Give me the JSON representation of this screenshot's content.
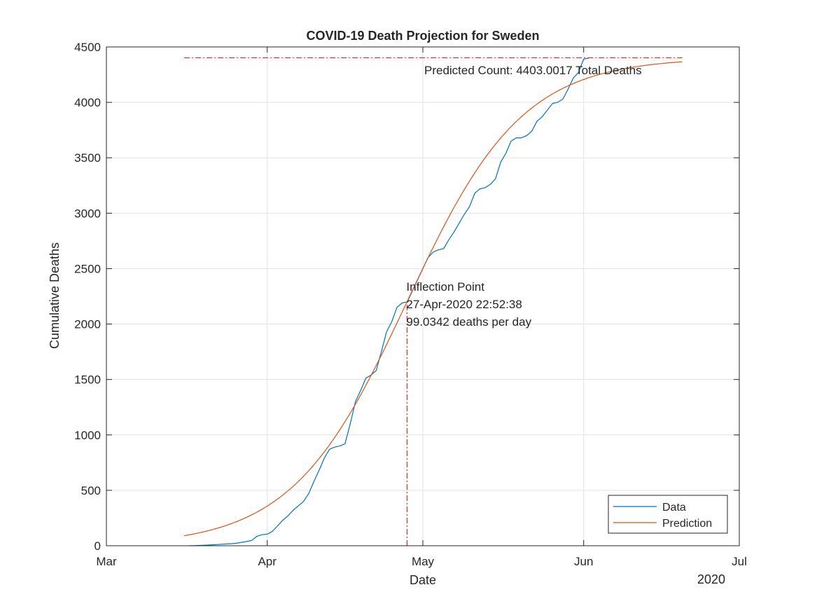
{
  "chart_data": {
    "type": "line",
    "title": "COVID-19 Death Projection for Sweden",
    "xlabel": "Date",
    "ylabel": "Cumulative Deaths",
    "x_axis_type": "date",
    "x_range": [
      "2020-03-01",
      "2020-07-01"
    ],
    "x_ticks": [
      {
        "date": "2020-03-01",
        "label": "Mar"
      },
      {
        "date": "2020-04-01",
        "label": "Apr"
      },
      {
        "date": "2020-05-01",
        "label": "May"
      },
      {
        "date": "2020-06-01",
        "label": "Jun"
      },
      {
        "date": "2020-07-01",
        "label": "Jul"
      }
    ],
    "x_secondary_label": "2020",
    "ylim": [
      0,
      4500
    ],
    "y_ticks": [
      0,
      500,
      1000,
      1500,
      2000,
      2500,
      3000,
      3500,
      4000,
      4500
    ],
    "grid": true,
    "legend_position": "bottom-right",
    "series": [
      {
        "name": "Data",
        "color": "#0072BD",
        "points": [
          [
            "2020-03-17",
            0
          ],
          [
            "2020-03-18",
            1
          ],
          [
            "2020-03-19",
            3
          ],
          [
            "2020-03-20",
            5
          ],
          [
            "2020-03-21",
            7
          ],
          [
            "2020-03-22",
            10
          ],
          [
            "2020-03-23",
            13
          ],
          [
            "2020-03-24",
            16
          ],
          [
            "2020-03-25",
            18
          ],
          [
            "2020-03-26",
            22
          ],
          [
            "2020-03-27",
            30
          ],
          [
            "2020-03-28",
            38
          ],
          [
            "2020-03-29",
            48
          ],
          [
            "2020-03-30",
            85
          ],
          [
            "2020-03-31",
            100
          ],
          [
            "2020-04-01",
            105
          ],
          [
            "2020-04-02",
            130
          ],
          [
            "2020-04-03",
            180
          ],
          [
            "2020-04-04",
            230
          ],
          [
            "2020-04-05",
            270
          ],
          [
            "2020-04-06",
            320
          ],
          [
            "2020-04-07",
            360
          ],
          [
            "2020-04-08",
            400
          ],
          [
            "2020-04-09",
            470
          ],
          [
            "2020-04-10",
            580
          ],
          [
            "2020-04-11",
            680
          ],
          [
            "2020-04-12",
            790
          ],
          [
            "2020-04-13",
            870
          ],
          [
            "2020-04-14",
            890
          ],
          [
            "2020-04-15",
            900
          ],
          [
            "2020-04-16",
            920
          ],
          [
            "2020-04-17",
            1100
          ],
          [
            "2020-04-18",
            1300
          ],
          [
            "2020-04-19",
            1400
          ],
          [
            "2020-04-20",
            1510
          ],
          [
            "2020-04-21",
            1540
          ],
          [
            "2020-04-22",
            1580
          ],
          [
            "2020-04-23",
            1750
          ],
          [
            "2020-04-24",
            1930
          ],
          [
            "2020-04-25",
            2020
          ],
          [
            "2020-04-26",
            2150
          ],
          [
            "2020-04-27",
            2190
          ],
          [
            "2020-04-28",
            2200
          ],
          [
            "2020-04-29",
            2300
          ],
          [
            "2020-04-30",
            2400
          ],
          [
            "2020-05-01",
            2500
          ],
          [
            "2020-05-02",
            2600
          ],
          [
            "2020-05-03",
            2650
          ],
          [
            "2020-05-04",
            2670
          ],
          [
            "2020-05-05",
            2680
          ],
          [
            "2020-05-06",
            2760
          ],
          [
            "2020-05-07",
            2830
          ],
          [
            "2020-05-08",
            2910
          ],
          [
            "2020-05-09",
            2990
          ],
          [
            "2020-05-10",
            3060
          ],
          [
            "2020-05-11",
            3180
          ],
          [
            "2020-05-12",
            3220
          ],
          [
            "2020-05-13",
            3230
          ],
          [
            "2020-05-14",
            3260
          ],
          [
            "2020-05-15",
            3310
          ],
          [
            "2020-05-16",
            3460
          ],
          [
            "2020-05-17",
            3540
          ],
          [
            "2020-05-18",
            3650
          ],
          [
            "2020-05-19",
            3680
          ],
          [
            "2020-05-20",
            3680
          ],
          [
            "2020-05-21",
            3700
          ],
          [
            "2020-05-22",
            3740
          ],
          [
            "2020-05-23",
            3830
          ],
          [
            "2020-05-24",
            3870
          ],
          [
            "2020-05-25",
            3930
          ],
          [
            "2020-05-26",
            3990
          ],
          [
            "2020-05-27",
            4000
          ],
          [
            "2020-05-28",
            4030
          ],
          [
            "2020-05-29",
            4120
          ],
          [
            "2020-05-30",
            4220
          ],
          [
            "2020-05-31",
            4270
          ],
          [
            "2020-06-01",
            4390
          ],
          [
            "2020-06-02",
            4400
          ]
        ]
      },
      {
        "name": "Prediction",
        "color": "#D95319",
        "model": "logistic",
        "carrying_capacity": 4403.0017,
        "inflection_date": "2020-04-27T22:52:38",
        "max_rate_per_day": 99.0342,
        "x_start": "2020-03-16",
        "x_end": "2020-06-20"
      }
    ],
    "reference_lines": [
      {
        "type": "horizontal",
        "y": 4403.0017,
        "x_start": "2020-03-16",
        "x_end": "2020-06-20",
        "style": "dash-dot",
        "color": "#FF0000"
      },
      {
        "type": "vertical",
        "x": "2020-04-27T22:52:38",
        "y_start": 0,
        "y_end": 2201.5,
        "style": "dash-dot",
        "color": "#FF0000"
      }
    ],
    "annotations": {
      "predicted": {
        "text": "Predicted Count: 4403.0017 Total Deaths",
        "anchor": [
          "2020-05-01",
          4290
        ]
      },
      "inflection": {
        "lines": [
          "Inflection Point",
          "27-Apr-2020 22:52:38",
          "99.0342 deaths per day"
        ],
        "anchor": [
          "2020-04-27T22:52:38",
          2340
        ]
      }
    }
  }
}
